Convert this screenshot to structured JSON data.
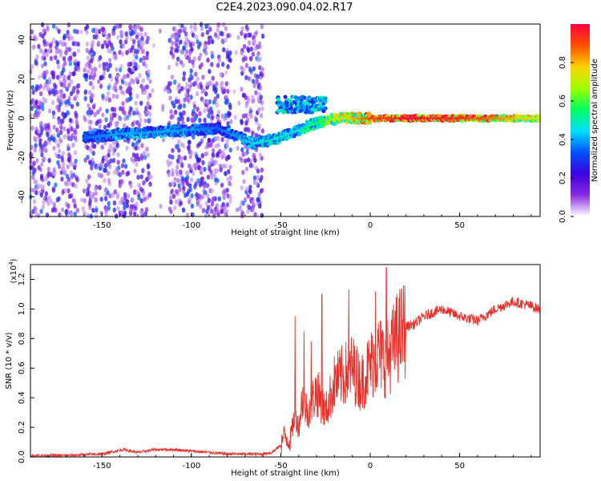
{
  "title": "C2E4.2023.090.04.02.R17",
  "colorbar": {
    "label": "Normalized spectral amplitude",
    "ticks": [
      "0.0",
      "0.2",
      "0.4",
      "0.6",
      "0.8"
    ],
    "range": [
      0,
      1
    ],
    "colors": [
      "#ffffff",
      "#8a2be2",
      "#3d00e0",
      "#0050ff",
      "#00e0ff",
      "#00ff60",
      "#a0ff00",
      "#ffd000",
      "#ff5000",
      "#ff0040"
    ]
  },
  "chart_data": [
    {
      "type": "heatmap",
      "xlabel": "Height of straight line (km)",
      "ylabel": "Frequency (Hz)",
      "xlim": [
        -190,
        95
      ],
      "ylim": [
        -50,
        48
      ],
      "xticks": [
        -150,
        -100,
        -50,
        0,
        50
      ],
      "yticks": [
        -40,
        -20,
        0,
        20,
        40
      ],
      "xtick_labels": [
        "-150",
        "-100",
        "-50",
        "0",
        "50"
      ],
      "ytick_labels": [
        "-40",
        "-20",
        "0",
        "20",
        "40"
      ],
      "ridge": {
        "x": [
          -160,
          -140,
          -120,
          -100,
          -85,
          -65,
          -55,
          -45,
          -35,
          -25,
          -15,
          0,
          20,
          50,
          80,
          94
        ],
        "freq": [
          -10,
          -8,
          -7,
          -6,
          -5,
          -13,
          -11,
          -8,
          -4,
          -1,
          0,
          0,
          0,
          0,
          0,
          0
        ],
        "amplitude": [
          0.35,
          0.4,
          0.4,
          0.4,
          0.35,
          0.45,
          0.5,
          0.45,
          0.5,
          0.6,
          0.75,
          0.9,
          1.0,
          0.95,
          0.8,
          0.7
        ]
      },
      "secondary_band": {
        "x_range": [
          -52,
          -25
        ],
        "freq": 7,
        "amplitude": 0.4
      },
      "noise_regions": [
        [
          -190,
          -163
        ],
        [
          -160,
          -123
        ],
        [
          -113,
          -78
        ],
        [
          -72,
          -60
        ]
      ]
    },
    {
      "type": "line",
      "xlabel": "Height of straight line (km)",
      "ylabel": "SNR (10 * v/v)",
      "yscale_label": "(x10",
      "yscale_exp": "4",
      "yscale_suffix": ")",
      "xlim": [
        -190,
        95
      ],
      "ylim": [
        0,
        1.3
      ],
      "xticks": [
        -150,
        -100,
        -50,
        0,
        50
      ],
      "yticks": [
        0.0,
        0.2,
        0.4,
        0.6,
        0.8,
        1.0,
        1.2
      ],
      "xtick_labels": [
        "-150",
        "-100",
        "-50",
        "0",
        "50"
      ],
      "ytick_labels": [
        "0.0",
        "0.2",
        "0.4",
        "0.6",
        "0.8",
        "1.0",
        "1.2"
      ],
      "color": "#e8302a",
      "series": [
        {
          "x": [
            -190,
            -170,
            -150,
            -138,
            -130,
            -120,
            -110,
            -100,
            -90,
            -80,
            -70,
            -60,
            -55,
            -50,
            -48,
            -45,
            -42,
            -40,
            -38,
            -35,
            -30,
            -25,
            -20,
            -15,
            -10,
            -5,
            0,
            5,
            9,
            15,
            20,
            25,
            30,
            40,
            50,
            60,
            70,
            80,
            90,
            94
          ],
          "values": [
            0.01,
            0.01,
            0.02,
            0.05,
            0.03,
            0.05,
            0.05,
            0.04,
            0.03,
            0.02,
            0.02,
            0.02,
            0.03,
            0.08,
            0.15,
            0.1,
            0.3,
            0.2,
            0.4,
            0.3,
            0.45,
            0.3,
            0.5,
            0.55,
            0.6,
            0.5,
            0.62,
            0.7,
            0.65,
            0.8,
            0.88,
            0.9,
            0.95,
            1.0,
            0.95,
            0.92,
            1.0,
            1.05,
            1.02,
            1.0
          ],
          "spikes": [
            {
              "x": -42,
              "value": 0.95
            },
            {
              "x": -37,
              "value": 0.85
            },
            {
              "x": -33,
              "value": 0.78
            },
            {
              "x": -27,
              "value": 1.1
            },
            {
              "x": -12,
              "value": 1.13
            },
            {
              "x": 3,
              "value": 1.12
            },
            {
              "x": 9,
              "value": 1.28
            },
            {
              "x": 15,
              "value": 1.1
            }
          ]
        }
      ]
    }
  ]
}
